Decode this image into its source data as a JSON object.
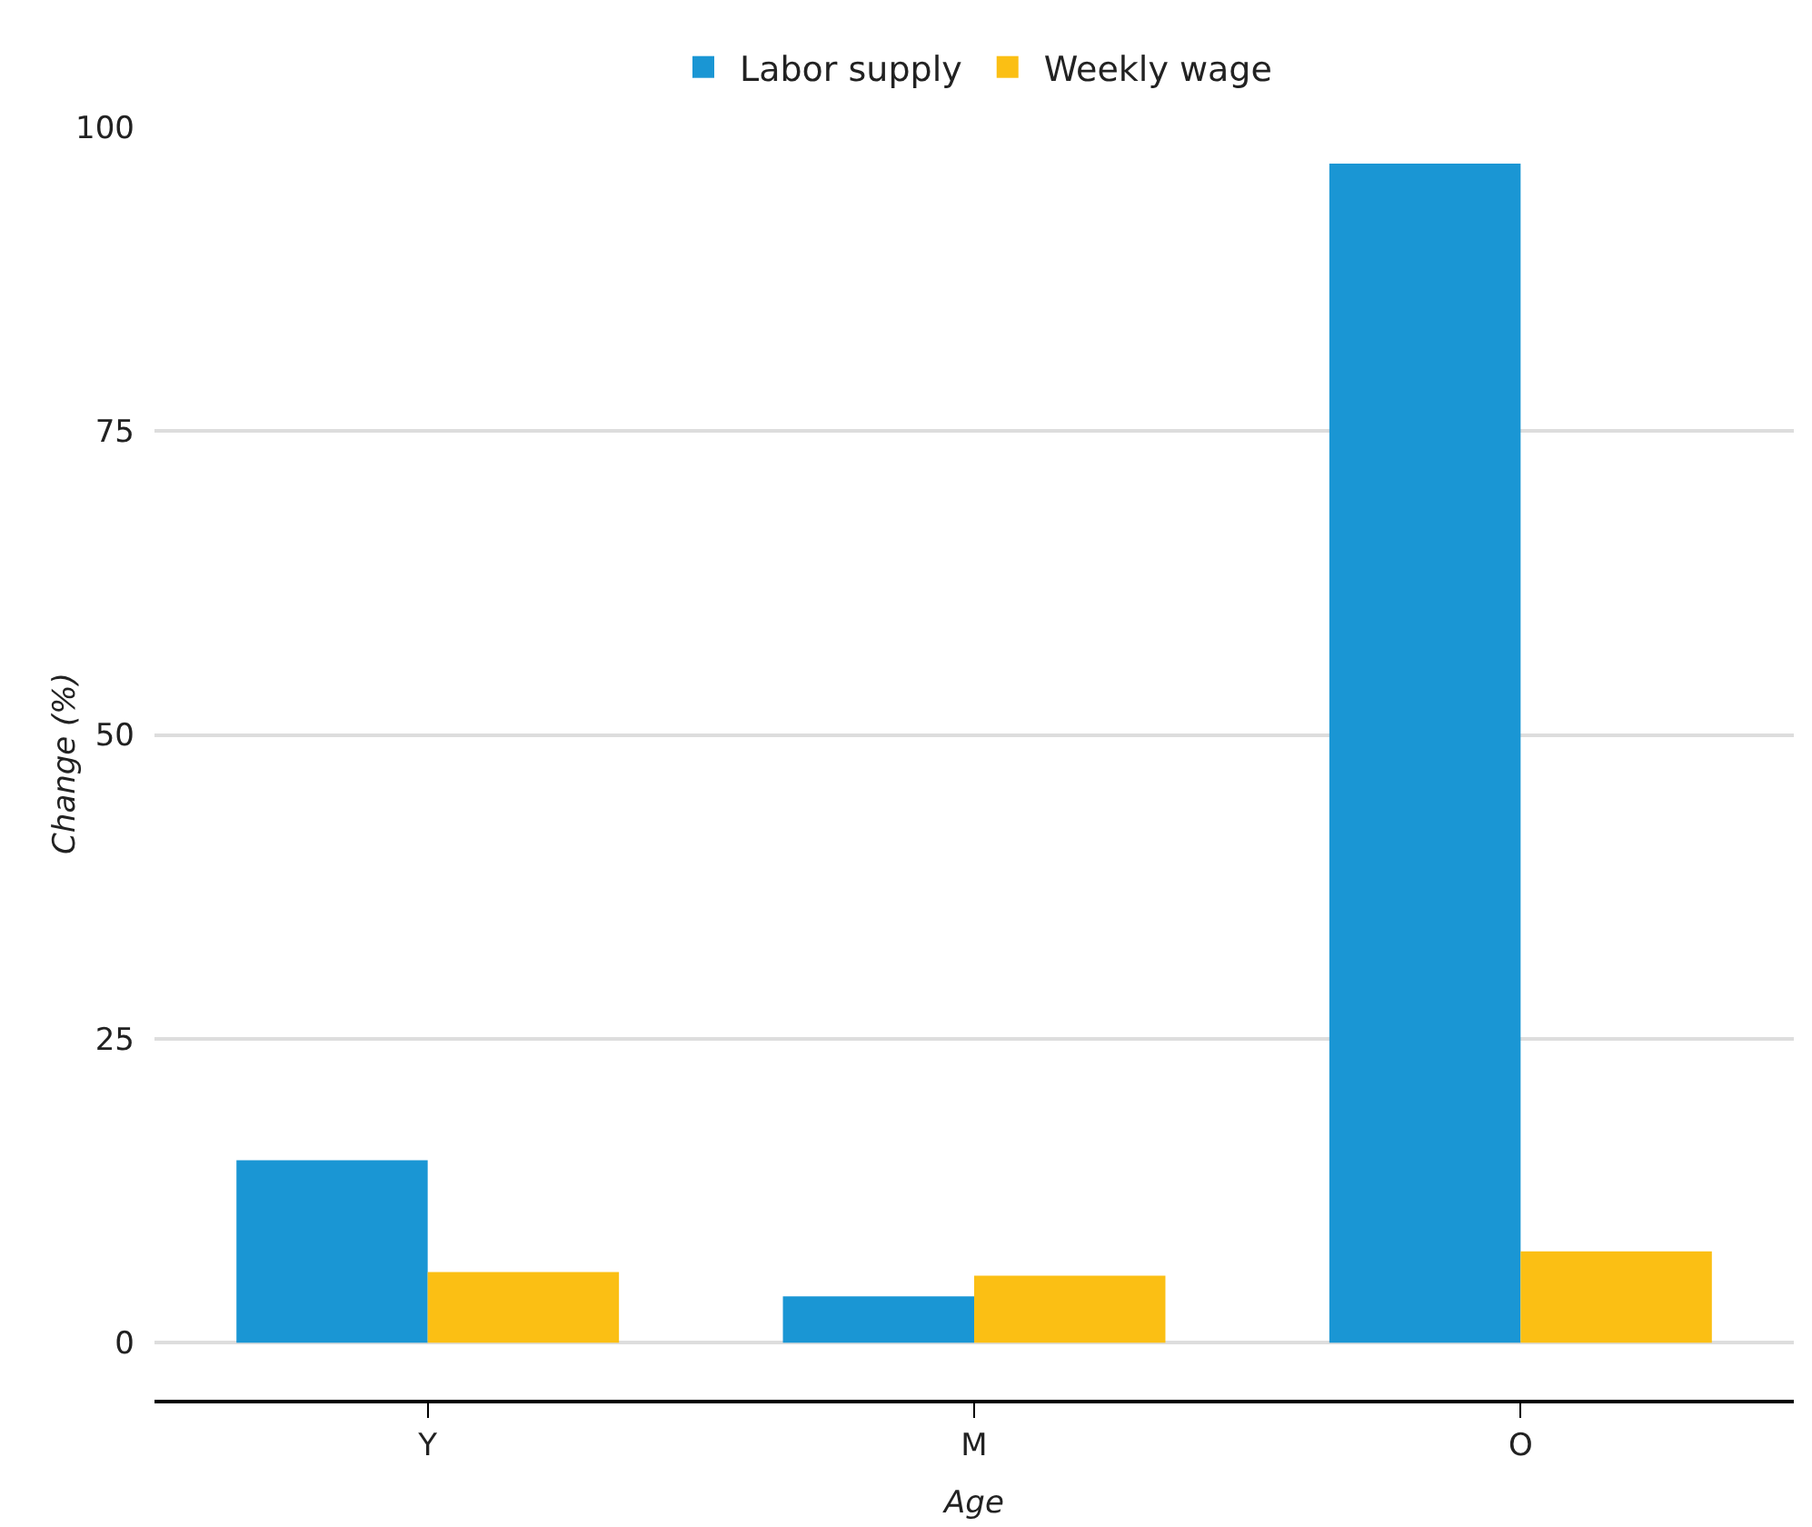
{
  "chart_data": {
    "type": "bar",
    "xlabel": "Age",
    "ylabel": "Change (%)",
    "categories": [
      "Y",
      "M",
      "O"
    ],
    "series": [
      {
        "name": "Labor supply",
        "color": "#1a96d4",
        "values": [
          15,
          3.8,
          97
        ]
      },
      {
        "name": "Weekly wage",
        "color": "#fbbf14",
        "values": [
          5.8,
          5.5,
          7.5
        ]
      }
    ],
    "ylim": [
      -4.7,
      100
    ],
    "yticks": [
      0,
      25,
      50,
      75,
      100
    ],
    "grid": "y",
    "legend": "top"
  }
}
